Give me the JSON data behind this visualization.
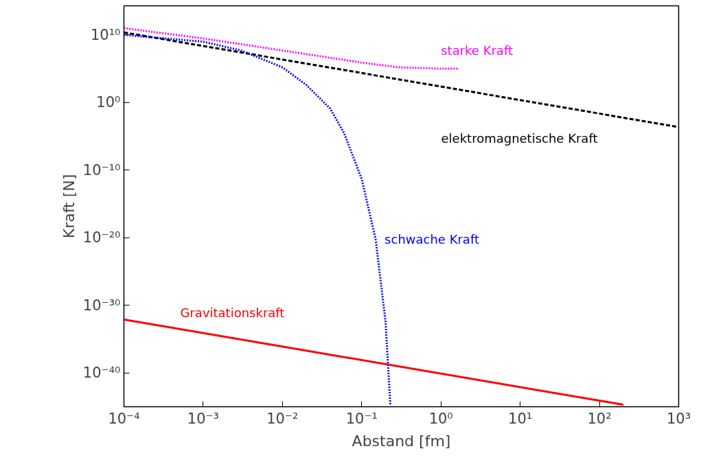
{
  "chart_data": {
    "type": "line",
    "xlabel": "Abstand [fm]",
    "ylabel": "Kraft [N]",
    "log": "xy",
    "grid": false,
    "legend": false,
    "xlim": [
      0.0001,
      1000
    ],
    "ylim": [
      1e-45,
      200000000000000.0
    ],
    "xticks": [
      {
        "value": 0.0001,
        "label": "10⁻⁴"
      },
      {
        "value": 0.001,
        "label": "10⁻³"
      },
      {
        "value": 0.01,
        "label": "10⁻²"
      },
      {
        "value": 0.1,
        "label": "10⁻¹"
      },
      {
        "value": 1,
        "label": "10⁰"
      },
      {
        "value": 10,
        "label": "10¹"
      },
      {
        "value": 100,
        "label": "10²"
      },
      {
        "value": 1000,
        "label": "10³"
      }
    ],
    "yticks": [
      {
        "value": 1e-40,
        "label": "10⁻⁴⁰"
      },
      {
        "value": 1e-30,
        "label": "10⁻³⁰"
      },
      {
        "value": 1e-20,
        "label": "10⁻²⁰"
      },
      {
        "value": 1e-10,
        "label": "10⁻¹⁰"
      },
      {
        "value": 1,
        "label": "10⁰"
      },
      {
        "value": 10000000000.0,
        "label": "10¹⁰"
      }
    ],
    "series": [
      {
        "name": "starke Kraft",
        "color": "#ff00ff",
        "line_style": "dotted",
        "x": [
          0.0001,
          0.001,
          0.01,
          0.1,
          0.3,
          1,
          1.7
        ],
        "values": [
          100000000000.0,
          3000000000.0,
          50000000.0,
          800000.0,
          160000.0,
          100000.0,
          100000.0
        ]
      },
      {
        "name": "elektromagnetische Kraft",
        "color": "#000000",
        "line_style": "dashed",
        "x": [
          0.0001,
          1000
        ],
        "values": [
          23000000000.0,
          0.00023
        ]
      },
      {
        "name": "schwache Kraft",
        "color": "#0000ff",
        "line_style": "dotted",
        "x": [
          0.0001,
          0.001,
          0.003,
          0.01,
          0.02,
          0.04,
          0.06,
          0.1,
          0.15,
          0.2,
          0.23
        ],
        "values": [
          10000000000.0,
          1000000000.0,
          50000000.0,
          160000.0,
          400.0,
          0.13,
          3e-05,
          5e-12,
          6e-21,
          4e-33,
          2e-45
        ]
      },
      {
        "name": "Gravitationskraft",
        "color": "#ff0000",
        "line_style": "solid",
        "x": [
          0.0001,
          200
        ],
        "values": [
          8e-33,
          2e-45
        ]
      }
    ]
  }
}
